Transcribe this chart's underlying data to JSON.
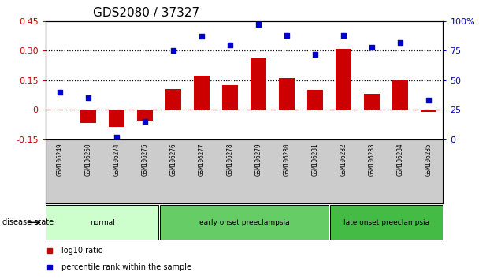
{
  "title": "GDS2080 / 37327",
  "samples": [
    "GSM106249",
    "GSM106250",
    "GSM106274",
    "GSM106275",
    "GSM106276",
    "GSM106277",
    "GSM106278",
    "GSM106279",
    "GSM106280",
    "GSM106281",
    "GSM106282",
    "GSM106283",
    "GSM106284",
    "GSM106285"
  ],
  "log10_ratio": [
    0.003,
    -0.065,
    -0.085,
    -0.055,
    0.105,
    0.175,
    0.125,
    0.265,
    0.16,
    0.1,
    0.31,
    0.08,
    0.15,
    -0.012
  ],
  "percentile_rank": [
    40,
    35,
    2,
    15,
    75,
    87,
    80,
    97,
    88,
    72,
    88,
    78,
    82,
    33
  ],
  "bar_color": "#cc0000",
  "scatter_color": "#0000cc",
  "left_ylim": [
    -0.15,
    0.45
  ],
  "right_ylim": [
    0,
    100
  ],
  "left_yticks": [
    -0.15,
    0.0,
    0.15,
    0.3,
    0.45
  ],
  "left_yticklabels": [
    "-0.15",
    "0",
    "0.15",
    "0.30",
    "0.45"
  ],
  "right_yticks": [
    0,
    25,
    50,
    75,
    100
  ],
  "right_yticklabels": [
    "0",
    "25",
    "50",
    "75",
    "100%"
  ],
  "hline_values": [
    0.15,
    0.3
  ],
  "zero_line": 0.0,
  "group_configs": [
    {
      "label": "normal",
      "start": 0,
      "end": 3,
      "color": "#ccffcc"
    },
    {
      "label": "early onset preeclampsia",
      "start": 4,
      "end": 9,
      "color": "#66cc66"
    },
    {
      "label": "late onset preeclampsia",
      "start": 10,
      "end": 13,
      "color": "#44bb44"
    }
  ],
  "legend_items": [
    {
      "label": "log10 ratio",
      "color": "#cc0000"
    },
    {
      "label": "percentile rank within the sample",
      "color": "#0000cc"
    }
  ],
  "background_color": "#ffffff",
  "tick_label_color_left": "#cc0000",
  "tick_label_color_right": "#0000cc",
  "title_fontsize": 11,
  "axis_fontsize": 8,
  "bar_width": 0.55,
  "disease_state_label": "disease state"
}
